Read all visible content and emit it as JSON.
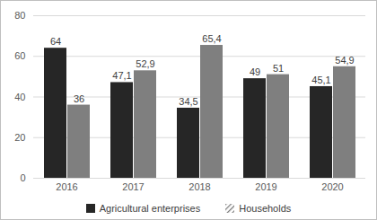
{
  "chart_data": {
    "type": "bar",
    "categories": [
      "2016",
      "2017",
      "2018",
      "2019",
      "2020"
    ],
    "series": [
      {
        "name": "Agricultural enterprises",
        "color": "#262626",
        "values": [
          64,
          47.1,
          34.5,
          49,
          45.1
        ],
        "value_labels": [
          "64",
          "47,1",
          "34,5",
          "49",
          "45,1"
        ]
      },
      {
        "name": "Households",
        "color": "#7f7f7f",
        "values": [
          36,
          52.9,
          65.4,
          51,
          54.9
        ],
        "value_labels": [
          "36",
          "52,9",
          "65,4",
          "51",
          "54,9"
        ]
      }
    ],
    "ylim": [
      0,
      80
    ],
    "yticks": [
      0,
      20,
      40,
      60,
      80
    ],
    "grid": true,
    "legend": "bottom",
    "data_labels": true
  }
}
